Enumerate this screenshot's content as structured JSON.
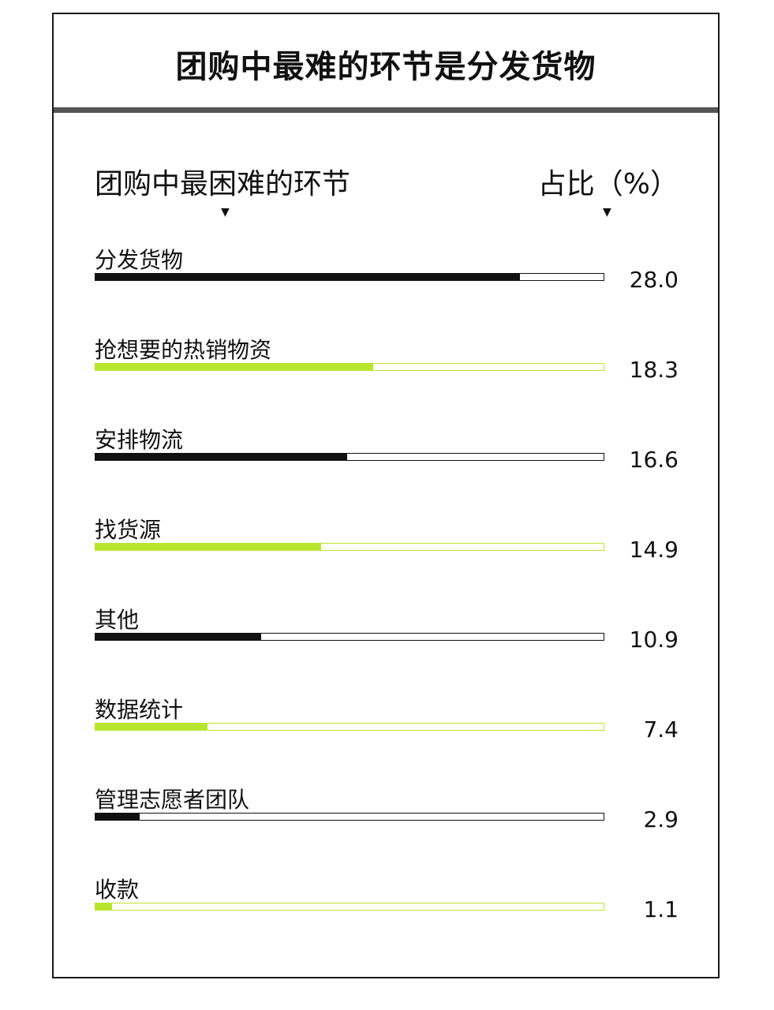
{
  "title": "团购中最难的环节是分发货物",
  "headers": {
    "left": "团购中最困难的环节",
    "right": "占比（%）",
    "arrow_glyph": "▼"
  },
  "colors": {
    "black": "#111111",
    "green": "#b8e62e"
  },
  "chart_data": {
    "type": "bar",
    "title": "团购中最难的环节是分发货物",
    "xlabel": "团购中最困难的环节",
    "ylabel": "占比（%）",
    "ylim": [
      0,
      33.5
    ],
    "categories": [
      "分发货物",
      "抢想要的热销物资",
      "安排物流",
      "找货源",
      "其他",
      "数据统计",
      "管理志愿者团队",
      "收款"
    ],
    "values": [
      28.0,
      18.3,
      16.6,
      14.9,
      10.9,
      7.4,
      2.9,
      1.1
    ],
    "value_labels": [
      "28.0",
      "18.3",
      "16.6",
      "14.9",
      "10.9",
      "7.4",
      "2.9",
      "1.1"
    ],
    "bar_colors": [
      "black",
      "green",
      "black",
      "green",
      "black",
      "green",
      "black",
      "green"
    ],
    "grid": false,
    "legend": "none"
  }
}
